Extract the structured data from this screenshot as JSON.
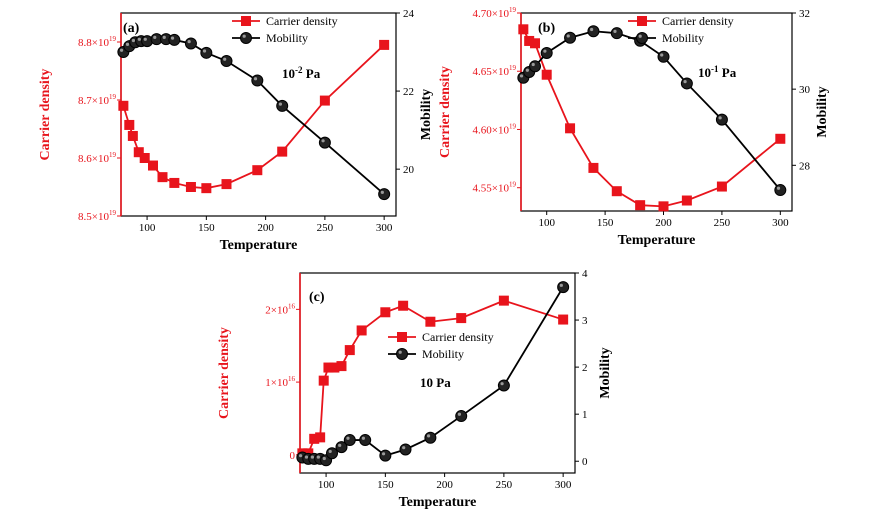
{
  "colors": {
    "carrier": "#e8141c",
    "mobility": "#000000"
  },
  "chart_data": [
    {
      "type": "line",
      "panel_label": "(a)",
      "annotation": "10-2 Pa",
      "annotation_base": "10",
      "annotation_exp": "-2",
      "annotation_unit": " Pa",
      "xlabel": "Temperature",
      "ylabel_left": "Carrier density",
      "ylabel_right": "Mobility",
      "xlim": [
        78,
        310
      ],
      "xticks": [
        100,
        150,
        200,
        250,
        300
      ],
      "left_ylim": [
        8.5,
        8.85
      ],
      "left_ticks": [
        {
          "value": 8.5,
          "label": "8.5×10",
          "exp": "19"
        },
        {
          "value": 8.6,
          "label": "8.6×10",
          "exp": "19"
        },
        {
          "value": 8.7,
          "label": "8.7×10",
          "exp": "19"
        },
        {
          "value": 8.8,
          "label": "8.8×10",
          "exp": "19"
        }
      ],
      "right_ylim": [
        18.8,
        24
      ],
      "right_ticks": [
        20,
        22,
        24
      ],
      "legend_position": "top-right",
      "series": [
        {
          "name": "Carrier density",
          "axis": "left",
          "marker": "square",
          "x": [
            80,
            85,
            88,
            93,
            98,
            105,
            113,
            123,
            137,
            150,
            167,
            193,
            214,
            250,
            300
          ],
          "y": [
            8.69,
            8.657,
            8.638,
            8.61,
            8.6,
            8.587,
            8.567,
            8.557,
            8.55,
            8.548,
            8.555,
            8.579,
            8.611,
            8.699,
            8.795
          ]
        },
        {
          "name": "Mobility",
          "axis": "right",
          "marker": "circle",
          "x": [
            80,
            85,
            90,
            95,
            100,
            108,
            116,
            123,
            137,
            150,
            167,
            193,
            214,
            250,
            300
          ],
          "y": [
            23.0,
            23.15,
            23.25,
            23.28,
            23.28,
            23.33,
            23.33,
            23.31,
            23.22,
            22.98,
            22.77,
            22.27,
            21.62,
            20.68,
            19.36
          ]
        }
      ]
    },
    {
      "type": "line",
      "panel_label": "(b)",
      "annotation": "10-1 Pa",
      "annotation_base": "10",
      "annotation_exp": "-1",
      "annotation_unit": " Pa",
      "xlabel": "Temperature",
      "ylabel_left": "Carrier density",
      "ylabel_right": "Mobility",
      "xlim": [
        78,
        310
      ],
      "xticks": [
        100,
        150,
        200,
        250,
        300
      ],
      "left_ylim": [
        4.53,
        4.7
      ],
      "left_ticks": [
        {
          "value": 4.55,
          "label": "4.55×10",
          "exp": "19"
        },
        {
          "value": 4.6,
          "label": "4.60×10",
          "exp": "19"
        },
        {
          "value": 4.65,
          "label": "4.65×10",
          "exp": "19"
        },
        {
          "value": 4.7,
          "label": "4.70×10",
          "exp": "19"
        }
      ],
      "right_ylim": [
        26.8,
        32
      ],
      "right_ticks": [
        28,
        30,
        32
      ],
      "legend_position": "top-right",
      "series": [
        {
          "name": "Carrier density",
          "axis": "left",
          "marker": "square",
          "x": [
            80,
            85,
            90,
            100,
            120,
            140,
            160,
            180,
            200,
            220,
            250,
            300
          ],
          "y": [
            4.686,
            4.676,
            4.674,
            4.647,
            4.601,
            4.567,
            4.547,
            4.535,
            4.534,
            4.539,
            4.551,
            4.592
          ]
        },
        {
          "name": "Mobility",
          "axis": "right",
          "marker": "circle",
          "x": [
            80,
            85,
            90,
            100,
            120,
            140,
            160,
            180,
            200,
            220,
            250,
            300
          ],
          "y": [
            30.3,
            30.45,
            30.6,
            30.95,
            31.35,
            31.52,
            31.47,
            31.27,
            30.85,
            30.15,
            29.2,
            27.35
          ]
        }
      ]
    },
    {
      "type": "line",
      "panel_label": "(c)",
      "annotation": "10 Pa",
      "annotation_base": "10",
      "annotation_exp": "",
      "annotation_unit": " Pa",
      "xlabel": "Temperature",
      "ylabel_left": "Carrier density",
      "ylabel_right": "Mobility",
      "xlim": [
        78,
        310
      ],
      "xticks": [
        100,
        150,
        200,
        250,
        300
      ],
      "left_ylim": [
        -0.25,
        2.5
      ],
      "left_ticks": [
        {
          "value": 0,
          "label": "0",
          "exp": ""
        },
        {
          "value": 1,
          "label": "1×10",
          "exp": "16"
        },
        {
          "value": 2,
          "label": "2×10",
          "exp": "16"
        }
      ],
      "right_ylim": [
        -0.25,
        4
      ],
      "right_ticks": [
        0,
        1,
        2,
        3,
        4
      ],
      "legend_position": "center-right",
      "series": [
        {
          "name": "Carrier density",
          "axis": "left",
          "marker": "square",
          "x": [
            80,
            85,
            90,
            95,
            98,
            102,
            107,
            113,
            120,
            130,
            150,
            165,
            188,
            214,
            250,
            300
          ],
          "y": [
            0.02,
            0.02,
            0.22,
            0.24,
            1.02,
            1.2,
            1.2,
            1.22,
            1.44,
            1.71,
            1.96,
            2.05,
            1.83,
            1.88,
            2.12,
            1.86
          ]
        },
        {
          "name": "Mobility",
          "axis": "right",
          "marker": "circle",
          "x": [
            80,
            85,
            90,
            95,
            100,
            105,
            113,
            120,
            133,
            150,
            167,
            188,
            214,
            250,
            300
          ],
          "y": [
            0.08,
            0.05,
            0.05,
            0.05,
            0.02,
            0.17,
            0.3,
            0.45,
            0.45,
            0.12,
            0.25,
            0.5,
            0.96,
            1.61,
            3.7
          ]
        }
      ]
    }
  ]
}
